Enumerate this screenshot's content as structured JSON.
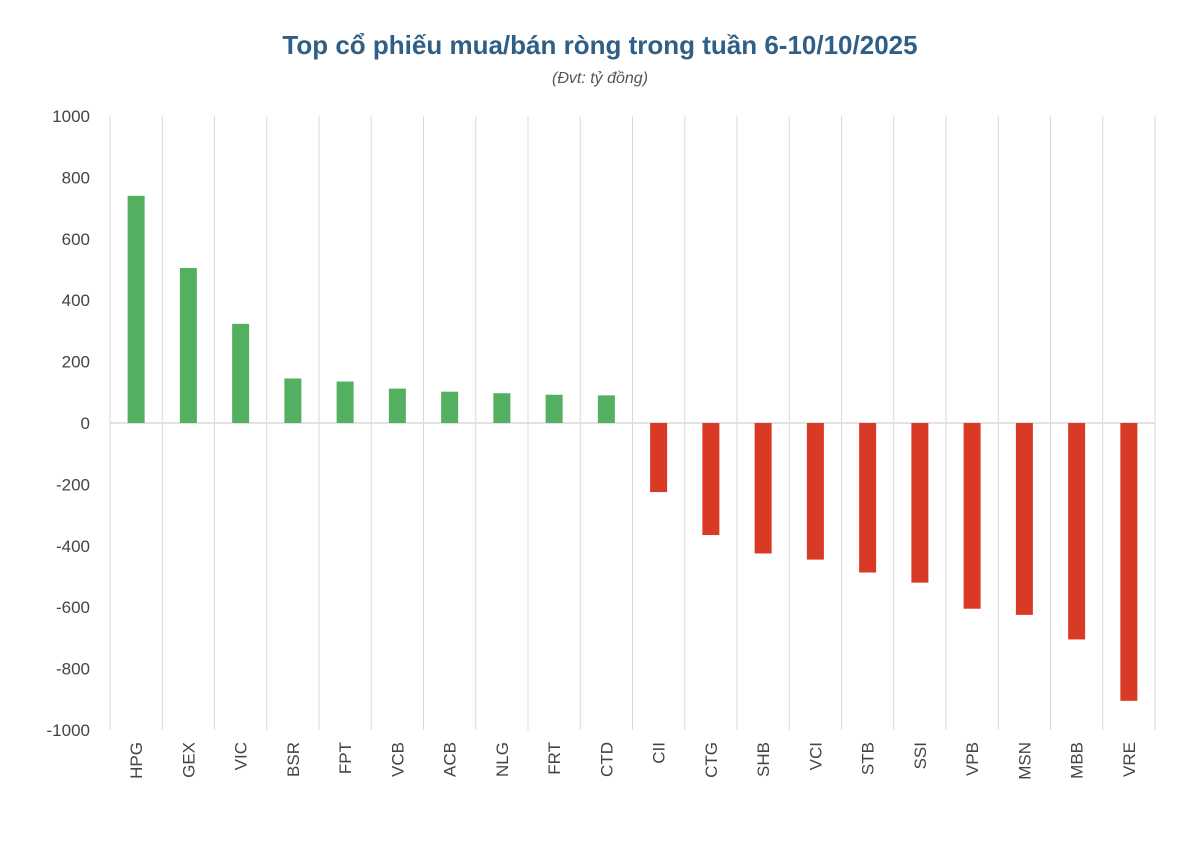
{
  "chart_data": {
    "type": "bar",
    "title": "Top cổ phiếu mua/bán ròng trong tuần 6-10/10/2025",
    "subtitle": "(Đvt: tỷ đồng)",
    "xlabel": "",
    "ylabel": "",
    "ylim": [
      -1000,
      1000
    ],
    "yticks": [
      1000,
      800,
      600,
      400,
      200,
      0,
      -200,
      -400,
      -600,
      -800,
      -1000
    ],
    "grid": "vertical",
    "categories": [
      "HPG",
      "GEX",
      "VIC",
      "BSR",
      "FPT",
      "VCB",
      "ACB",
      "NLG",
      "FRT",
      "CTD",
      "CII",
      "CTG",
      "SHB",
      "VCI",
      "STB",
      "SSI",
      "VPB",
      "MSN",
      "MBB",
      "VRE"
    ],
    "values": [
      740,
      505,
      323,
      145,
      135,
      112,
      102,
      97,
      92,
      90,
      -225,
      -365,
      -425,
      -445,
      -487,
      -520,
      -605,
      -625,
      -705,
      -905
    ],
    "colors": {
      "positive": "#52b060",
      "negative": "#d93a26"
    }
  }
}
